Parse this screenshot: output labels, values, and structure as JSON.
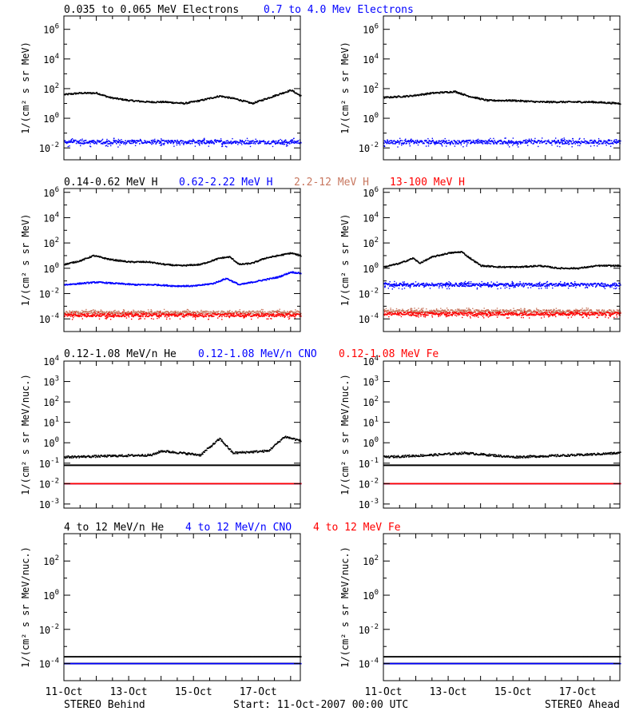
{
  "colors": {
    "black": "#000000",
    "blue": "#0000ff",
    "red": "#ff0000",
    "tan": "#c87860"
  },
  "rows": [
    {
      "titles": [
        {
          "text": "0.035 to 0.065 MeV Electrons",
          "color": "#000000"
        },
        {
          "text": "0.7 to 4.0 Mev Electrons",
          "color": "#0000ff"
        }
      ]
    },
    {
      "titles": [
        {
          "text": "0.14-0.62 MeV H",
          "color": "#000000"
        },
        {
          "text": "0.62-2.22 MeV H",
          "color": "#0000ff"
        },
        {
          "text": "2.2-12 MeV H",
          "color": "#c87860"
        },
        {
          "text": "13-100 MeV H",
          "color": "#ff0000"
        }
      ]
    },
    {
      "titles": [
        {
          "text": "0.12-1.08 MeV/n He",
          "color": "#000000"
        },
        {
          "text": "0.12-1.08 MeV/n CNO",
          "color": "#0000ff"
        },
        {
          "text": "0.12-1.08 MeV Fe",
          "color": "#ff0000"
        }
      ]
    },
    {
      "titles": [
        {
          "text": "4 to 12 MeV/n He",
          "color": "#000000"
        },
        {
          "text": "4 to 12 MeV/n CNO",
          "color": "#0000ff"
        },
        {
          "text": "4 to 12 MeV Fe",
          "color": "#ff0000"
        }
      ]
    }
  ],
  "footer": {
    "left": "STEREO Behind",
    "center": "Start: 11-Oct-2007 00:00 UTC",
    "right": "STEREO Ahead"
  },
  "chart_data": [
    {
      "type": "scatter",
      "panel": "electrons-behind",
      "ylabel": "1/(cm² s sr MeV)",
      "log_y": true,
      "ylim": [
        -2.8,
        6.9
      ],
      "y_ticks": [
        "10^-2",
        "10^0",
        "10^2",
        "10^4",
        "10^6"
      ],
      "x_ticks": [
        "11-Oct",
        "13-Oct",
        "15-Oct",
        "17-Oct"
      ],
      "xlim_days": [
        0,
        7.3
      ],
      "series": [
        {
          "name": "0.035 to 0.065 MeV Electrons",
          "color": "#000000",
          "x_days": [
            0,
            0.5,
            1.0,
            1.4,
            2.0,
            2.6,
            3.1,
            3.7,
            4.2,
            4.8,
            5.3,
            5.8,
            6.2,
            6.6,
            7.0,
            7.3
          ],
          "log10_y": [
            1.6,
            1.7,
            1.7,
            1.4,
            1.2,
            1.1,
            1.1,
            1.0,
            1.2,
            1.5,
            1.3,
            1.0,
            1.3,
            1.6,
            1.9,
            1.5
          ]
        },
        {
          "name": "0.7 to 4.0 Mev Electrons",
          "color": "#0000ff",
          "x_days": [
            0,
            7.3
          ],
          "log10_y": [
            -1.6,
            -1.6
          ]
        }
      ]
    },
    {
      "type": "scatter",
      "panel": "electrons-ahead",
      "ylabel": "1/(cm² s sr MeV)",
      "log_y": true,
      "ylim": [
        -2.8,
        6.9
      ],
      "y_ticks": [
        "10^-2",
        "10^0",
        "10^2",
        "10^4",
        "10^6"
      ],
      "x_ticks": [
        "11-Oct",
        "13-Oct",
        "15-Oct",
        "17-Oct"
      ],
      "xlim_days": [
        0,
        7.3
      ],
      "series": [
        {
          "color": "#000000",
          "x_days": [
            0,
            0.8,
            1.5,
            2.2,
            2.6,
            3.2,
            4.0,
            4.8,
            5.6,
            6.4,
            7.3
          ],
          "log10_y": [
            1.4,
            1.5,
            1.7,
            1.8,
            1.5,
            1.2,
            1.2,
            1.1,
            1.1,
            1.1,
            1.0
          ]
        },
        {
          "color": "#0000ff",
          "x_days": [
            0,
            7.3
          ],
          "log10_y": [
            -1.6,
            -1.6
          ]
        }
      ]
    },
    {
      "type": "scatter",
      "panel": "protons-behind",
      "ylabel": "1/(cm² s sr MeV)",
      "log_y": true,
      "ylim": [
        -5.0,
        6.3
      ],
      "y_ticks": [
        "10^-4",
        "10^-2",
        "10^0",
        "10^2",
        "10^4",
        "10^6"
      ],
      "x_ticks": [
        "11-Oct",
        "13-Oct",
        "15-Oct",
        "17-Oct"
      ],
      "xlim_days": [
        0,
        7.3
      ],
      "series": [
        {
          "name": "0.14-0.62 MeV H",
          "color": "#000000",
          "x_days": [
            0,
            0.5,
            0.9,
            1.4,
            2.0,
            2.6,
            3.1,
            3.6,
            4.2,
            4.8,
            5.1,
            5.4,
            5.8,
            6.2,
            6.6,
            7.0,
            7.3
          ],
          "log10_y": [
            0.3,
            0.6,
            1.0,
            0.7,
            0.5,
            0.5,
            0.3,
            0.2,
            0.3,
            0.8,
            0.9,
            0.3,
            0.4,
            0.8,
            1.0,
            1.2,
            1.0
          ]
        },
        {
          "name": "0.62-2.22 MeV H",
          "color": "#0000ff",
          "x_days": [
            0,
            0.5,
            1.0,
            1.6,
            2.2,
            2.8,
            3.4,
            4.0,
            4.6,
            5.0,
            5.4,
            5.8,
            6.2,
            6.6,
            7.0,
            7.3
          ],
          "log10_y": [
            -1.3,
            -1.2,
            -1.1,
            -1.2,
            -1.3,
            -1.3,
            -1.4,
            -1.4,
            -1.2,
            -0.8,
            -1.3,
            -1.1,
            -0.9,
            -0.7,
            -0.3,
            -0.4
          ]
        },
        {
          "name": "2.2-12 MeV H",
          "color": "#c87860",
          "x_days": [
            0,
            7.3
          ],
          "log10_y": [
            -3.5,
            -3.5
          ]
        },
        {
          "name": "13-100 MeV H",
          "color": "#ff0000",
          "x_days": [
            0,
            7.3
          ],
          "log10_y": [
            -3.7,
            -3.7
          ]
        }
      ]
    },
    {
      "type": "scatter",
      "panel": "protons-ahead",
      "ylabel": "1/(cm² s sr MeV)",
      "log_y": true,
      "ylim": [
        -5.0,
        6.3
      ],
      "y_ticks": [
        "10^-4",
        "10^-2",
        "10^0",
        "10^2",
        "10^4",
        "10^6"
      ],
      "x_ticks": [
        "11-Oct",
        "13-Oct",
        "15-Oct",
        "17-Oct"
      ],
      "xlim_days": [
        0,
        7.3
      ],
      "series": [
        {
          "color": "#000000",
          "x_days": [
            0,
            0.5,
            0.9,
            1.1,
            1.5,
            2.0,
            2.4,
            2.6,
            3.0,
            3.6,
            4.2,
            4.8,
            5.4,
            6.0,
            6.6,
            7.3
          ],
          "log10_y": [
            0.1,
            0.4,
            0.8,
            0.4,
            0.9,
            1.2,
            1.3,
            0.9,
            0.2,
            0.1,
            0.1,
            0.2,
            0.0,
            0.0,
            0.2,
            0.2
          ]
        },
        {
          "color": "#0000ff",
          "x_days": [
            0,
            7.3
          ],
          "log10_y": [
            -1.3,
            -1.3
          ]
        },
        {
          "color": "#c87860",
          "x_days": [
            0,
            7.3
          ],
          "log10_y": [
            -3.4,
            -3.4
          ]
        },
        {
          "color": "#ff0000",
          "x_days": [
            0,
            7.3
          ],
          "log10_y": [
            -3.6,
            -3.6
          ]
        }
      ]
    },
    {
      "type": "scatter",
      "panel": "heavy-low-behind",
      "ylabel": "1/(cm² s sr MeV/nuc.)",
      "log_y": true,
      "ylim": [
        -3.2,
        4.0
      ],
      "y_ticks": [
        "10^-3",
        "10^-2",
        "10^-1",
        "10^0",
        "10^1",
        "10^2",
        "10^3",
        "10^4"
      ],
      "x_ticks": [
        "11-Oct",
        "13-Oct",
        "15-Oct",
        "17-Oct"
      ],
      "xlim_days": [
        0,
        7.3
      ],
      "series": [
        {
          "name": "0.12-1.08 MeV/n He",
          "color": "#000000",
          "x_days": [
            0,
            2.7,
            3.0,
            4.2,
            4.8,
            5.2,
            6.3,
            6.8,
            7.3
          ],
          "log10_y": [
            -0.7,
            -0.6,
            -0.4,
            -0.6,
            0.2,
            -0.5,
            -0.4,
            0.3,
            0.1
          ]
        },
        {
          "name": "0.12-1.08 MeV/n CNO",
          "color": "#0000ff",
          "x_days": [
            0,
            7.3
          ],
          "log10_y": [
            -2.0,
            -2.0
          ]
        },
        {
          "name": "0.12-1.08 MeV Fe",
          "color": "#ff0000",
          "x_days": [
            0,
            7.3
          ],
          "log10_y": [
            -2.0,
            -2.0
          ]
        }
      ]
    },
    {
      "type": "scatter",
      "panel": "heavy-low-ahead",
      "ylabel": "1/(cm² s sr MeV/nuc.)",
      "log_y": true,
      "ylim": [
        -3.2,
        4.0
      ],
      "y_ticks": [
        "10^-3",
        "10^-2",
        "10^-1",
        "10^0",
        "10^1",
        "10^2",
        "10^3",
        "10^4"
      ],
      "x_ticks": [
        "11-Oct",
        "13-Oct",
        "15-Oct",
        "17-Oct"
      ],
      "xlim_days": [
        0,
        7.3
      ],
      "series": [
        {
          "color": "#000000",
          "x_days": [
            0,
            1.5,
            2.5,
            4.0,
            6.0,
            7.3
          ],
          "log10_y": [
            -0.7,
            -0.6,
            -0.5,
            -0.7,
            -0.6,
            -0.5
          ]
        },
        {
          "color": "#0000ff",
          "x_days": [
            0,
            7.3
          ],
          "log10_y": [
            -2.0,
            -2.0
          ]
        },
        {
          "color": "#ff0000",
          "x_days": [
            0,
            7.3
          ],
          "log10_y": [
            -2.0,
            -2.0
          ]
        }
      ]
    },
    {
      "type": "scatter",
      "panel": "heavy-high-behind",
      "ylabel": "1/(cm² s sr MeV/nuc.)",
      "log_y": true,
      "ylim": [
        -5.0,
        3.6
      ],
      "y_ticks": [
        "10^-4",
        "10^-2",
        "10^0",
        "10^2"
      ],
      "x_ticks": [
        "11-Oct",
        "13-Oct",
        "15-Oct",
        "17-Oct"
      ],
      "xlim_days": [
        0,
        7.3
      ],
      "series": [
        {
          "name": "4 to 12 MeV/n He",
          "color": "#000000",
          "x_days": [
            0,
            7.3
          ],
          "log10_y": [
            -3.6,
            -3.6
          ]
        },
        {
          "name": "4 to 12 MeV/n CNO",
          "color": "#0000ff",
          "x_days": [
            0,
            7.3
          ],
          "log10_y": [
            -4.0,
            -4.0
          ]
        }
      ]
    },
    {
      "type": "scatter",
      "panel": "heavy-high-ahead",
      "ylabel": "1/(cm² s sr MeV/nuc.)",
      "log_y": true,
      "ylim": [
        -5.0,
        3.6
      ],
      "y_ticks": [
        "10^-4",
        "10^-2",
        "10^0",
        "10^2"
      ],
      "x_ticks": [
        "11-Oct",
        "13-Oct",
        "15-Oct",
        "17-Oct"
      ],
      "xlim_days": [
        0,
        7.3
      ],
      "series": [
        {
          "color": "#000000",
          "x_days": [
            0,
            7.3
          ],
          "log10_y": [
            -3.6,
            -3.6
          ]
        },
        {
          "color": "#0000ff",
          "x_days": [
            0,
            7.3
          ],
          "log10_y": [
            -4.0,
            -4.0
          ]
        }
      ]
    }
  ]
}
